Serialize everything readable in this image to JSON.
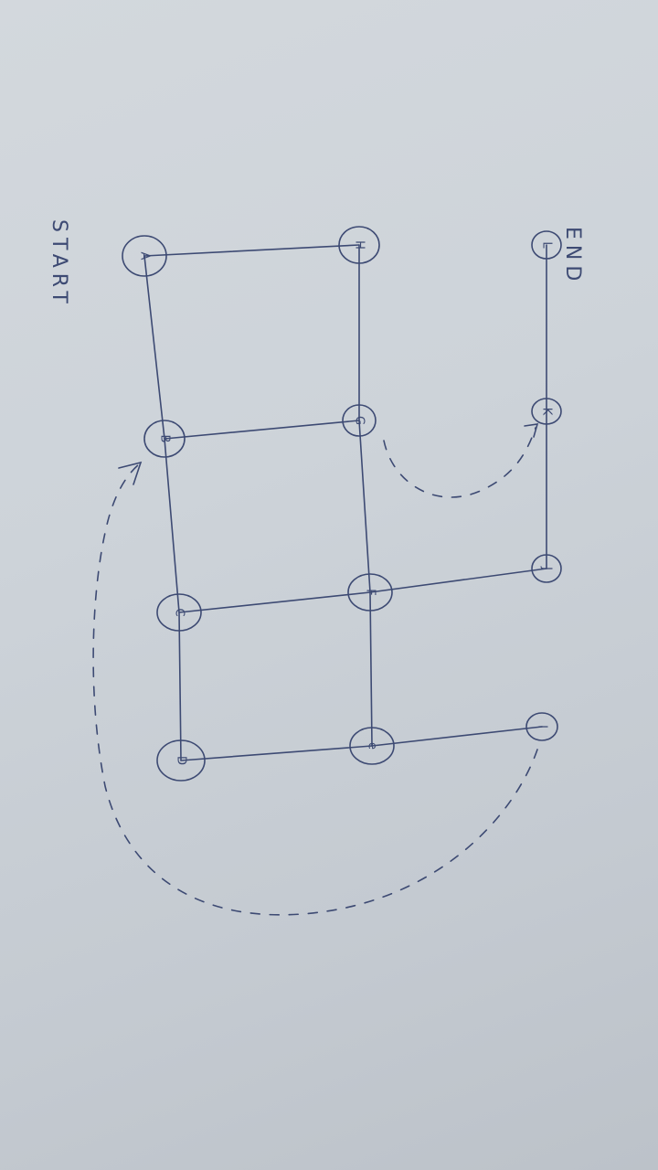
{
  "annotations": {
    "start": "START",
    "end": "END"
  },
  "nodes": [
    {
      "id": "A",
      "label": "A"
    },
    {
      "id": "B",
      "label": "B"
    },
    {
      "id": "C",
      "label": "C"
    },
    {
      "id": "D",
      "label": "D"
    },
    {
      "id": "E",
      "label": "e"
    },
    {
      "id": "F",
      "label": "F"
    },
    {
      "id": "G",
      "label": "G"
    },
    {
      "id": "H",
      "label": "H"
    },
    {
      "id": "I",
      "label": "I"
    },
    {
      "id": "J",
      "label": "J"
    },
    {
      "id": "K",
      "label": "K"
    },
    {
      "id": "L",
      "label": "L"
    }
  ],
  "edges": [
    {
      "from": "A",
      "to": "H"
    },
    {
      "from": "A",
      "to": "B"
    },
    {
      "from": "H",
      "to": "G"
    },
    {
      "from": "G",
      "to": "B"
    },
    {
      "from": "B",
      "to": "C"
    },
    {
      "from": "G",
      "to": "F"
    },
    {
      "from": "F",
      "to": "C"
    },
    {
      "from": "C",
      "to": "D"
    },
    {
      "from": "F",
      "to": "E"
    },
    {
      "from": "E",
      "to": "D"
    },
    {
      "from": "F",
      "to": "J"
    },
    {
      "from": "E",
      "to": "I"
    },
    {
      "from": "L",
      "to": "K"
    },
    {
      "from": "K",
      "to": "J"
    }
  ],
  "dashed_paths": [
    {
      "from": "G",
      "to": "K"
    },
    {
      "from": "I",
      "to": "B"
    }
  ],
  "colors": {
    "ink": "#3d4a73",
    "paper": "#cdd3d9"
  }
}
